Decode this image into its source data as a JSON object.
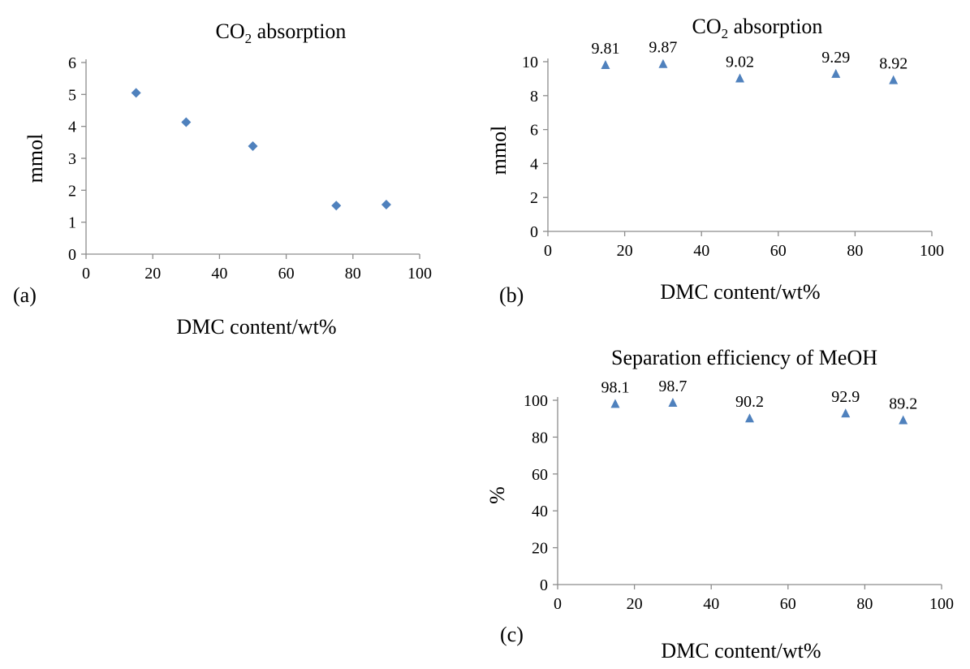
{
  "chart_data": [
    {
      "id": "a",
      "panel_label": "(a)",
      "type": "scatter",
      "title_main": "CO",
      "title_sub": "2",
      "title_rest": " absorption",
      "xlabel": "DMC content/wt%",
      "ylabel": "mmol",
      "xlim": [
        0,
        100
      ],
      "ylim": [
        0,
        6
      ],
      "xticks": [
        0,
        20,
        40,
        60,
        80,
        100
      ],
      "yticks": [
        0,
        1,
        2,
        3,
        4,
        5,
        6
      ],
      "marker": "diamond",
      "color": "#4f81bd",
      "x": [
        15,
        30,
        50,
        75,
        90
      ],
      "y": [
        5.05,
        4.13,
        3.38,
        1.52,
        1.55
      ],
      "labels": []
    },
    {
      "id": "b",
      "panel_label": "(b)",
      "type": "scatter",
      "title_main": "CO",
      "title_sub": "2",
      "title_rest": " absorption",
      "xlabel": "DMC content/wt%",
      "ylabel": "mmol",
      "xlim": [
        0,
        100
      ],
      "ylim": [
        0,
        10
      ],
      "xticks": [
        0,
        20,
        40,
        60,
        80,
        100
      ],
      "yticks": [
        0,
        2,
        4,
        6,
        8,
        10
      ],
      "marker": "triangle",
      "color": "#4f81bd",
      "x": [
        15,
        30,
        50,
        75,
        90
      ],
      "y": [
        9.81,
        9.87,
        9.02,
        9.29,
        8.92
      ],
      "labels": [
        "9.81",
        "9.87",
        "9.02",
        "9.29",
        "8.92"
      ]
    },
    {
      "id": "c",
      "panel_label": "(c)",
      "type": "scatter",
      "title_main": "Separation efficiency of MeOH",
      "title_sub": "",
      "title_rest": "",
      "xlabel": "DMC content/wt%",
      "ylabel": "%",
      "xlim": [
        0,
        100
      ],
      "ylim": [
        0,
        100
      ],
      "xticks": [
        0,
        20,
        40,
        60,
        80,
        100
      ],
      "yticks": [
        0,
        20,
        40,
        60,
        80,
        100
      ],
      "marker": "triangle",
      "color": "#4f81bd",
      "x": [
        15,
        30,
        50,
        75,
        90
      ],
      "y": [
        98.1,
        98.7,
        90.2,
        92.9,
        89.2
      ],
      "labels": [
        "98.1",
        "98.7",
        "90.2",
        "92.9",
        "89.2"
      ]
    }
  ]
}
